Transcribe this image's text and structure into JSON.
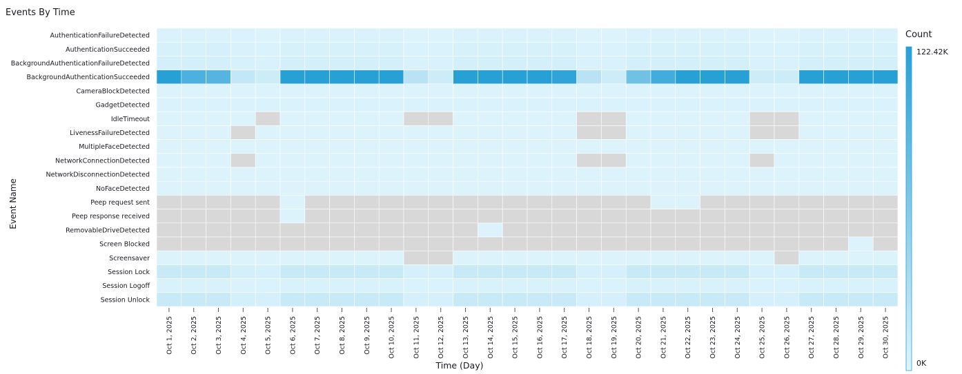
{
  "widget": {
    "title": "Events By Time"
  },
  "chart_data": {
    "type": "heatmap",
    "xlabel": "Time (Day)",
    "ylabel": "Event Name",
    "legend": {
      "title": "Count",
      "max_label": "122.42K",
      "min_label": "0K",
      "max": 122420,
      "min": 0,
      "placement": "right"
    },
    "colors": {
      "low": "#def4fc",
      "high": "#27a0d6",
      "missing": "#d8d8d8",
      "grid": "#ffffff"
    },
    "x": [
      "Oct 1, 2025",
      "Oct 2, 2025",
      "Oct 3, 2025",
      "Oct 4, 2025",
      "Oct 5, 2025",
      "Oct 6, 2025",
      "Oct 7, 2025",
      "Oct 8, 2025",
      "Oct 9, 2025",
      "Oct 10, 2025",
      "Oct 11, 2025",
      "Oct 12, 2025",
      "Oct 13, 2025",
      "Oct 14, 2025",
      "Oct 15, 2025",
      "Oct 16, 2025",
      "Oct 17, 2025",
      "Oct 18, 2025",
      "Oct 19, 2025",
      "Oct 20, 2025",
      "Oct 21, 2025",
      "Oct 22, 2025",
      "Oct 23, 2025",
      "Oct 24, 2025",
      "Oct 25, 2025",
      "Oct 26, 2025",
      "Oct 27, 2025",
      "Oct 28, 2025",
      "Oct 29, 2025",
      "Oct 30, 2025"
    ],
    "y": [
      "AuthenticationFailureDetected",
      "AuthenticationSucceeded",
      "BackgroundAuthenticationFailureDetected",
      "BackgroundAuthenticationSucceeded",
      "CameraBlockDetected",
      "GadgetDetected",
      "IdleTimeout",
      "LivenessFailureDetected",
      "MultipleFaceDetected",
      "NetworkConnectionDetected",
      "NetworkDisconnectionDetected",
      "NoFaceDetected",
      "Peep request sent",
      "Peep response received",
      "RemovableDriveDetected",
      "Screen Blocked",
      "Screensaver",
      "Session Lock",
      "Session Logoff",
      "Session Unlock"
    ],
    "values": [
      [
        2,
        2,
        2,
        2,
        1,
        2,
        2,
        2,
        2,
        2,
        1,
        1,
        2,
        2,
        2,
        2,
        2,
        1,
        1,
        2,
        2,
        2,
        2,
        2,
        1,
        1,
        2,
        2,
        2,
        2
      ],
      [
        4,
        4,
        5,
        3,
        2,
        4,
        4,
        4,
        4,
        4,
        2,
        2,
        4,
        4,
        4,
        4,
        4,
        2,
        2,
        4,
        4,
        4,
        4,
        4,
        2,
        2,
        4,
        4,
        4,
        4
      ],
      [
        6,
        6,
        6,
        4,
        3,
        6,
        6,
        6,
        6,
        6,
        3,
        3,
        6,
        6,
        6,
        6,
        6,
        3,
        3,
        6,
        6,
        6,
        6,
        6,
        3,
        3,
        6,
        6,
        6,
        6
      ],
      [
        100,
        80,
        75,
        15,
        10,
        100,
        100,
        100,
        100,
        100,
        20,
        10,
        100,
        100,
        100,
        100,
        95,
        20,
        10,
        60,
        85,
        100,
        100,
        100,
        10,
        10,
        100,
        100,
        100,
        100
      ],
      [
        1,
        1,
        1,
        1,
        1,
        1,
        1,
        1,
        1,
        1,
        1,
        1,
        1,
        1,
        1,
        1,
        1,
        1,
        1,
        1,
        1,
        1,
        1,
        1,
        1,
        1,
        1,
        1,
        1,
        1
      ],
      [
        2,
        2,
        2,
        2,
        2,
        2,
        2,
        2,
        2,
        2,
        2,
        2,
        2,
        2,
        2,
        2,
        2,
        2,
        2,
        2,
        2,
        2,
        2,
        2,
        2,
        2,
        2,
        2,
        2,
        2
      ],
      [
        1,
        1,
        1,
        1,
        null,
        1,
        1,
        1,
        1,
        1,
        null,
        null,
        1,
        1,
        1,
        1,
        1,
        null,
        null,
        1,
        1,
        1,
        1,
        1,
        null,
        null,
        1,
        1,
        1,
        1
      ],
      [
        1,
        1,
        1,
        null,
        1,
        1,
        1,
        1,
        1,
        1,
        1,
        1,
        1,
        1,
        1,
        1,
        1,
        null,
        null,
        1,
        1,
        1,
        1,
        1,
        null,
        null,
        1,
        1,
        1,
        1
      ],
      [
        1,
        1,
        1,
        1,
        1,
        1,
        1,
        1,
        1,
        1,
        1,
        1,
        1,
        1,
        1,
        1,
        1,
        1,
        1,
        1,
        1,
        1,
        1,
        1,
        1,
        1,
        1,
        1,
        1,
        1
      ],
      [
        1,
        1,
        1,
        null,
        1,
        1,
        1,
        1,
        1,
        1,
        1,
        1,
        1,
        1,
        1,
        1,
        1,
        null,
        null,
        1,
        1,
        1,
        1,
        1,
        null,
        1,
        1,
        1,
        1,
        1
      ],
      [
        1,
        1,
        1,
        1,
        1,
        1,
        1,
        1,
        1,
        1,
        1,
        1,
        1,
        1,
        1,
        1,
        1,
        1,
        1,
        1,
        1,
        1,
        1,
        1,
        1,
        1,
        1,
        1,
        1,
        1
      ],
      [
        1,
        1,
        1,
        1,
        1,
        1,
        1,
        1,
        1,
        1,
        1,
        1,
        1,
        1,
        1,
        1,
        1,
        1,
        1,
        1,
        1,
        1,
        1,
        1,
        1,
        1,
        1,
        1,
        1,
        1
      ],
      [
        null,
        null,
        null,
        null,
        null,
        1,
        null,
        null,
        null,
        null,
        null,
        null,
        null,
        null,
        null,
        null,
        null,
        null,
        null,
        null,
        1,
        1,
        null,
        null,
        null,
        null,
        null,
        null,
        null,
        null
      ],
      [
        null,
        null,
        null,
        null,
        null,
        1,
        null,
        null,
        null,
        null,
        null,
        null,
        null,
        null,
        null,
        null,
        null,
        null,
        null,
        null,
        null,
        null,
        null,
        null,
        null,
        null,
        null,
        null,
        null,
        null
      ],
      [
        null,
        null,
        null,
        null,
        null,
        null,
        null,
        null,
        null,
        null,
        null,
        null,
        null,
        1,
        null,
        null,
        null,
        null,
        null,
        null,
        null,
        null,
        null,
        null,
        null,
        null,
        null,
        null,
        null,
        null
      ],
      [
        null,
        null,
        null,
        null,
        null,
        null,
        null,
        null,
        null,
        null,
        null,
        null,
        null,
        null,
        null,
        null,
        null,
        null,
        null,
        null,
        null,
        null,
        null,
        null,
        null,
        null,
        null,
        null,
        1,
        null
      ],
      [
        1,
        1,
        1,
        1,
        1,
        1,
        1,
        1,
        1,
        1,
        null,
        null,
        1,
        1,
        1,
        1,
        1,
        1,
        1,
        1,
        1,
        1,
        1,
        1,
        1,
        null,
        1,
        1,
        1,
        1
      ],
      [
        12,
        12,
        12,
        6,
        5,
        12,
        12,
        12,
        12,
        12,
        5,
        5,
        12,
        12,
        12,
        12,
        12,
        5,
        5,
        12,
        12,
        12,
        12,
        12,
        5,
        5,
        12,
        12,
        12,
        12
      ],
      [
        3,
        3,
        3,
        2,
        2,
        3,
        3,
        3,
        3,
        3,
        2,
        2,
        3,
        3,
        3,
        3,
        3,
        2,
        2,
        4,
        3,
        3,
        3,
        3,
        2,
        2,
        3,
        3,
        3,
        3
      ],
      [
        12,
        12,
        12,
        6,
        5,
        12,
        12,
        12,
        12,
        12,
        5,
        5,
        12,
        12,
        12,
        12,
        12,
        5,
        5,
        12,
        12,
        12,
        12,
        12,
        5,
        5,
        12,
        12,
        12,
        12
      ]
    ],
    "value_units": "percent of legend max"
  }
}
